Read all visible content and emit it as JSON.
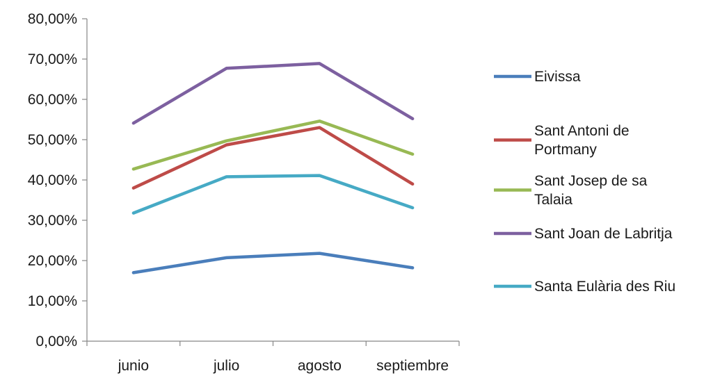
{
  "chart_data": {
    "type": "line",
    "title": "",
    "xlabel": "",
    "ylabel": "",
    "categories": [
      "junio",
      "julio",
      "agosto",
      "septiembre"
    ],
    "ylim": [
      0,
      0.8
    ],
    "yticks": [
      0,
      0.1,
      0.2,
      0.3,
      0.4,
      0.5,
      0.6,
      0.7,
      0.8
    ],
    "ytick_labels": [
      "0,00%",
      "10,00%",
      "20,00%",
      "30,00%",
      "40,00%",
      "50,00%",
      "60,00%",
      "70,00%",
      "80,00%"
    ],
    "grid": false,
    "legend_position": "right",
    "series": [
      {
        "name": "Eivissa",
        "legend_lines": [
          "Eivissa"
        ],
        "color": "#4a7ebb",
        "values": [
          0.17,
          0.207,
          0.218,
          0.182
        ]
      },
      {
        "name": "Sant Antoni de Portmany",
        "legend_lines": [
          "Sant Antoni de",
          "Portmany"
        ],
        "color": "#be4b48",
        "values": [
          0.38,
          0.487,
          0.53,
          0.39
        ]
      },
      {
        "name": "Sant Josep de sa Talaia",
        "legend_lines": [
          "Sant Josep de sa",
          "Talaia"
        ],
        "color": "#98b954",
        "values": [
          0.427,
          0.497,
          0.546,
          0.464
        ]
      },
      {
        "name": "Sant Joan de Labritja",
        "legend_lines": [
          "Sant Joan de Labritja"
        ],
        "color": "#7d60a0",
        "values": [
          0.541,
          0.677,
          0.689,
          0.552
        ]
      },
      {
        "name": "Santa Eulària des Riu",
        "legend_lines": [
          "Santa Eulària des Riu"
        ],
        "color": "#46aac5",
        "values": [
          0.318,
          0.408,
          0.411,
          0.331
        ]
      }
    ]
  }
}
